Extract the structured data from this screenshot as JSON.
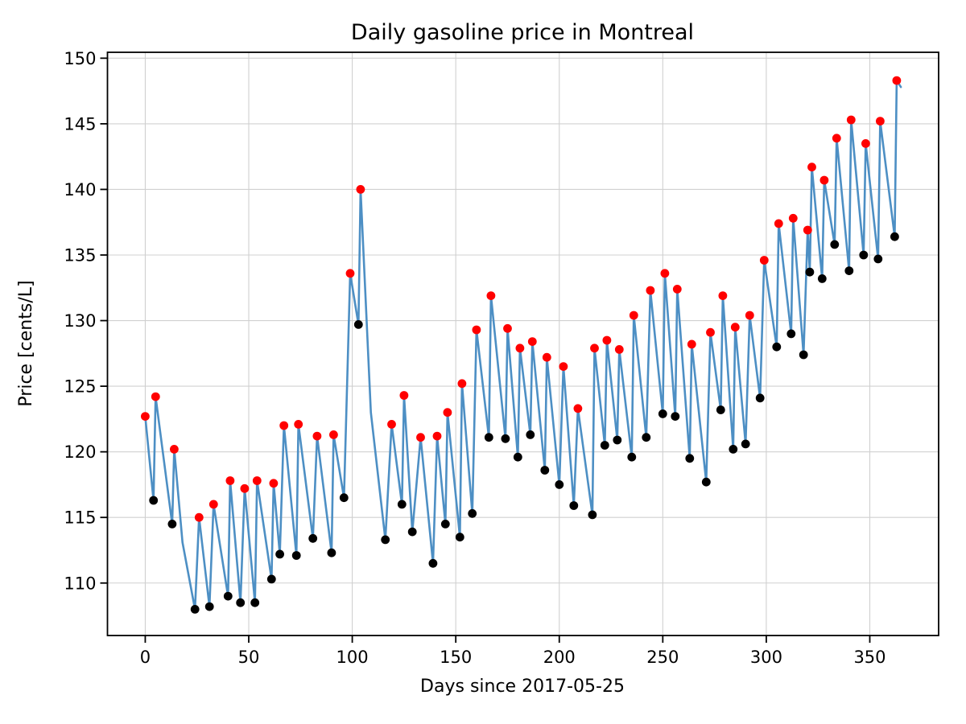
{
  "figure": {
    "title": "Daily gasoline price in Montreal",
    "xlabel": "Days since 2017-05-25",
    "ylabel": "Price [cents/L]"
  },
  "chart_data": {
    "type": "line",
    "title": "Daily gasoline price in Montreal",
    "xlabel": "Days since 2017-05-25",
    "ylabel": "Price [cents/L]",
    "xlim": [
      -18.25,
      383.25
    ],
    "ylim": [
      106.0,
      150.45
    ],
    "x_ticks": [
      0,
      50,
      100,
      150,
      200,
      250,
      300,
      350
    ],
    "y_ticks": [
      110,
      115,
      120,
      125,
      130,
      135,
      140,
      145,
      150
    ],
    "grid": true,
    "legend_position": "none",
    "marker_legend": {
      "max": "local maximum (red dot)",
      "min": "local minimum (black dot)"
    },
    "colors": {
      "line": "#4d8fc4",
      "local_max_marker": "#ff0000",
      "local_min_marker": "#000000",
      "grid": "#d0d0d0",
      "spine": "#000000",
      "text": "#000000",
      "background": "#ffffff"
    },
    "points": [
      [
        0,
        122.7,
        "max"
      ],
      [
        4,
        116.3,
        "min"
      ],
      [
        5,
        124.2,
        "max"
      ],
      [
        13,
        114.5,
        "min"
      ],
      [
        14,
        120.2,
        "max"
      ],
      [
        18,
        113.1,
        "pt"
      ],
      [
        24,
        108.0,
        "min"
      ],
      [
        26,
        115.0,
        "max"
      ],
      [
        31,
        108.2,
        "min"
      ],
      [
        33,
        116.0,
        "max"
      ],
      [
        40,
        109.0,
        "min"
      ],
      [
        41,
        117.8,
        "max"
      ],
      [
        46,
        108.5,
        "min"
      ],
      [
        48,
        117.2,
        "max"
      ],
      [
        53,
        108.5,
        "min"
      ],
      [
        54,
        117.8,
        "max"
      ],
      [
        61,
        110.3,
        "min"
      ],
      [
        62,
        117.6,
        "max"
      ],
      [
        65,
        112.2,
        "min"
      ],
      [
        67,
        122.0,
        "max"
      ],
      [
        73,
        112.1,
        "min"
      ],
      [
        74,
        122.1,
        "max"
      ],
      [
        81,
        113.4,
        "min"
      ],
      [
        83,
        121.2,
        "max"
      ],
      [
        90,
        112.3,
        "min"
      ],
      [
        91,
        121.3,
        "max"
      ],
      [
        96,
        116.5,
        "min"
      ],
      [
        99,
        133.6,
        "max"
      ],
      [
        103,
        129.7,
        "min"
      ],
      [
        104,
        140.0,
        "max"
      ],
      [
        109,
        123.0,
        "pt"
      ],
      [
        116,
        113.3,
        "min"
      ],
      [
        119,
        122.1,
        "max"
      ],
      [
        124,
        116.0,
        "min"
      ],
      [
        125,
        124.3,
        "max"
      ],
      [
        129,
        113.9,
        "min"
      ],
      [
        133,
        121.1,
        "max"
      ],
      [
        139,
        111.5,
        "min"
      ],
      [
        141,
        121.2,
        "max"
      ],
      [
        145,
        114.5,
        "min"
      ],
      [
        146,
        123.0,
        "max"
      ],
      [
        152,
        113.5,
        "min"
      ],
      [
        153,
        125.2,
        "max"
      ],
      [
        158,
        115.3,
        "min"
      ],
      [
        160,
        129.3,
        "max"
      ],
      [
        166,
        121.1,
        "min"
      ],
      [
        167,
        131.9,
        "max"
      ],
      [
        174,
        121.0,
        "min"
      ],
      [
        175,
        129.4,
        "max"
      ],
      [
        180,
        119.6,
        "min"
      ],
      [
        181,
        127.9,
        "max"
      ],
      [
        186,
        121.3,
        "min"
      ],
      [
        187,
        128.4,
        "max"
      ],
      [
        193,
        118.6,
        "min"
      ],
      [
        194,
        127.2,
        "max"
      ],
      [
        200,
        117.5,
        "min"
      ],
      [
        202,
        126.5,
        "max"
      ],
      [
        207,
        115.9,
        "min"
      ],
      [
        209,
        123.3,
        "max"
      ],
      [
        216,
        115.2,
        "min"
      ],
      [
        217,
        127.9,
        "max"
      ],
      [
        222,
        120.5,
        "min"
      ],
      [
        223,
        128.5,
        "max"
      ],
      [
        228,
        120.9,
        "min"
      ],
      [
        229,
        127.8,
        "max"
      ],
      [
        235,
        119.6,
        "min"
      ],
      [
        236,
        130.4,
        "max"
      ],
      [
        242,
        121.1,
        "min"
      ],
      [
        244,
        132.3,
        "max"
      ],
      [
        250,
        122.9,
        "min"
      ],
      [
        251,
        133.6,
        "max"
      ],
      [
        256,
        122.7,
        "min"
      ],
      [
        257,
        132.4,
        "max"
      ],
      [
        263,
        119.5,
        "min"
      ],
      [
        264,
        128.2,
        "max"
      ],
      [
        271,
        117.7,
        "min"
      ],
      [
        273,
        129.1,
        "max"
      ],
      [
        278,
        123.2,
        "min"
      ],
      [
        279,
        131.9,
        "max"
      ],
      [
        284,
        120.2,
        "min"
      ],
      [
        285,
        129.5,
        "max"
      ],
      [
        290,
        120.6,
        "min"
      ],
      [
        292,
        130.4,
        "max"
      ],
      [
        297,
        124.1,
        "min"
      ],
      [
        299,
        134.6,
        "max"
      ],
      [
        305,
        128.0,
        "min"
      ],
      [
        306,
        137.4,
        "max"
      ],
      [
        312,
        129.0,
        "min"
      ],
      [
        313,
        137.8,
        "max"
      ],
      [
        318,
        127.4,
        "min"
      ],
      [
        320,
        136.9,
        "max"
      ],
      [
        321,
        133.7,
        "min"
      ],
      [
        322,
        141.7,
        "max"
      ],
      [
        327,
        133.2,
        "min"
      ],
      [
        328,
        140.7,
        "max"
      ],
      [
        333,
        135.8,
        "min"
      ],
      [
        334,
        143.9,
        "max"
      ],
      [
        340,
        133.8,
        "min"
      ],
      [
        341,
        145.3,
        "max"
      ],
      [
        347,
        135.0,
        "min"
      ],
      [
        348,
        143.5,
        "max"
      ],
      [
        354,
        134.7,
        "min"
      ],
      [
        355,
        145.2,
        "max"
      ],
      [
        362,
        136.4,
        "min"
      ],
      [
        363,
        148.3,
        "max"
      ],
      [
        365,
        147.8,
        "pt"
      ]
    ]
  }
}
